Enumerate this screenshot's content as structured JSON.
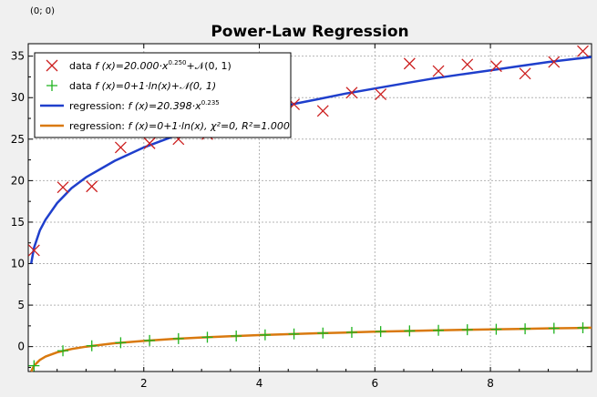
{
  "coord_readout": "(0; 0)",
  "chart_data": {
    "type": "scatter",
    "title": "Power-Law Regression",
    "xlabel": "",
    "ylabel": "",
    "xlim": [
      0,
      9.75
    ],
    "ylim": [
      -3,
      36.5
    ],
    "x_ticks": [
      2,
      4,
      6,
      8
    ],
    "y_ticks": [
      0,
      5,
      10,
      15,
      20,
      25,
      30,
      35
    ],
    "grid": true,
    "legend_position": "top-left",
    "series": [
      {
        "name": "data f(x)=20.000·x^0.250+𝒩(0, 1)",
        "kind": "scatter",
        "marker": "x",
        "color": "#cc1f1f",
        "x": [
          0.1,
          0.6,
          1.1,
          1.6,
          2.1,
          2.6,
          3.1,
          3.6,
          4.1,
          4.6,
          5.1,
          5.6,
          6.1,
          6.6,
          7.1,
          7.6,
          8.1,
          8.6,
          9.1,
          9.6
        ],
        "y": [
          11.6,
          19.2,
          19.3,
          24.0,
          24.5,
          25.0,
          25.6,
          27.0,
          28.5,
          29.2,
          28.4,
          30.6,
          30.4,
          34.1,
          33.2,
          34.0,
          33.8,
          32.9,
          34.3,
          35.6
        ]
      },
      {
        "name": "data f(x)=0+1·ln(x)+𝒩(0, 1)",
        "kind": "scatter",
        "marker": "+",
        "color": "#1fb31f",
        "x": [
          0.1,
          0.6,
          1.1,
          1.6,
          2.1,
          2.6,
          3.1,
          3.6,
          4.1,
          4.6,
          5.1,
          5.6,
          6.1,
          6.6,
          7.1,
          7.6,
          8.1,
          8.6,
          9.1,
          9.6
        ],
        "y": [
          -2.3,
          -0.5,
          0.1,
          0.47,
          0.74,
          0.96,
          1.13,
          1.28,
          1.41,
          1.53,
          1.63,
          1.72,
          1.81,
          1.89,
          1.96,
          2.03,
          2.09,
          2.15,
          2.21,
          2.26
        ]
      },
      {
        "name": "regression: f(x)=20.398·x^0.235",
        "kind": "line",
        "color": "#1f3fcc",
        "x": [
          0.05,
          0.1,
          0.2,
          0.3,
          0.5,
          0.75,
          1.0,
          1.5,
          2.0,
          2.5,
          3.0,
          3.5,
          4.0,
          4.5,
          5.0,
          5.5,
          6.0,
          6.5,
          7.0,
          7.5,
          8.0,
          8.5,
          9.0,
          9.5,
          9.75
        ],
        "y": [
          10.0,
          11.9,
          14.0,
          15.3,
          17.3,
          19.1,
          20.4,
          22.4,
          24.0,
          25.3,
          26.4,
          27.4,
          28.3,
          29.1,
          29.8,
          30.5,
          31.1,
          31.7,
          32.3,
          32.8,
          33.3,
          33.8,
          34.3,
          34.7,
          34.9
        ]
      },
      {
        "name": "regression: f(x)=0+1·ln(x), χ²=0, R²=1.000",
        "kind": "line",
        "color": "#d9790f",
        "x": [
          0.05,
          0.1,
          0.2,
          0.3,
          0.5,
          0.75,
          1.0,
          1.5,
          2.0,
          2.5,
          3.0,
          3.5,
          4.0,
          4.5,
          5.0,
          5.5,
          6.0,
          6.5,
          7.0,
          7.5,
          8.0,
          8.5,
          9.0,
          9.5,
          9.75
        ],
        "y": [
          -3.0,
          -2.3,
          -1.61,
          -1.2,
          -0.69,
          -0.29,
          0,
          0.41,
          0.69,
          0.92,
          1.1,
          1.25,
          1.39,
          1.5,
          1.61,
          1.7,
          1.79,
          1.87,
          1.95,
          2.01,
          2.08,
          2.14,
          2.2,
          2.25,
          2.28
        ]
      }
    ],
    "legend": [
      {
        "prefix": "data ",
        "formula": "f (x)=20.000·x",
        "sup": "0.250",
        "suffix": "+𝒩(0, 1)"
      },
      {
        "prefix": "data ",
        "formula": "f (x)=0+1·ln(x)+𝒩(0, 1)",
        "sup": "",
        "suffix": ""
      },
      {
        "prefix": "regression: ",
        "formula": "f (x)=20.398·x",
        "sup": "0.235",
        "suffix": ""
      },
      {
        "prefix": "regression: ",
        "formula": "f (x)=0+1·ln(x), χ²=0, R²=1.000",
        "sup": "",
        "suffix": ""
      }
    ]
  }
}
